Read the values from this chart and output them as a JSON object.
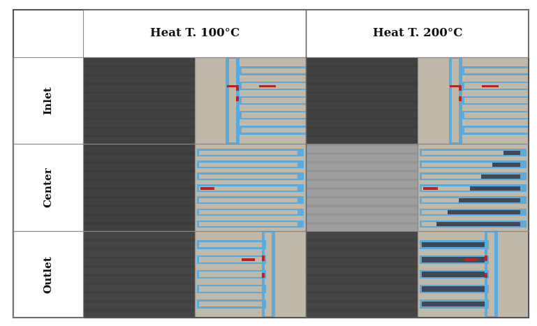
{
  "col_headers": [
    "Heat T. 100°C",
    "Heat T. 200°C"
  ],
  "row_headers": [
    "Inlet",
    "Center",
    "Outlet"
  ],
  "header_fontsize": 12,
  "row_label_fontsize": 11,
  "figure_bg": "#ffffff",
  "channel_blue": "#5aabdc",
  "channel_dark": "#404858",
  "red_marker": "#bb2222",
  "diagram_bg": "#c0b8a8",
  "photo_dark": "#444444",
  "photo_center_right": "#909090"
}
